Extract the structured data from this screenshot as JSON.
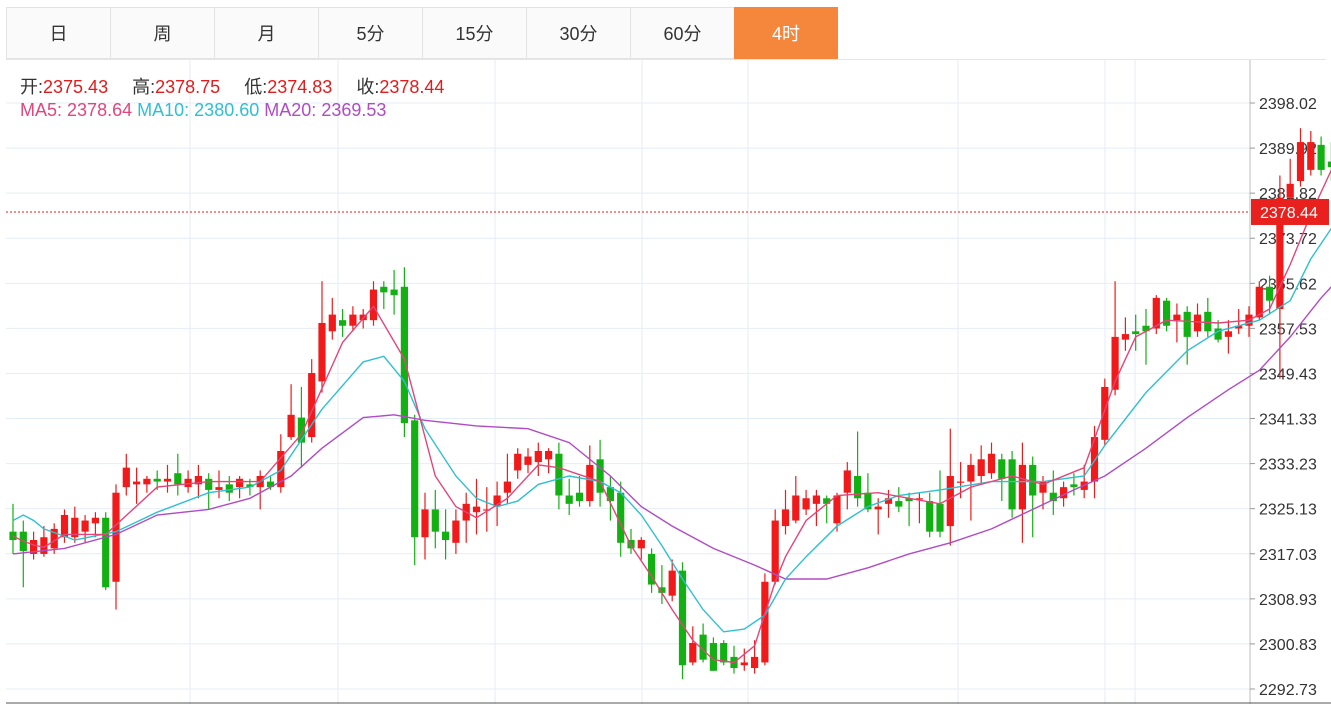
{
  "tabs": [
    {
      "label": "日",
      "active": false
    },
    {
      "label": "周",
      "active": false
    },
    {
      "label": "月",
      "active": false
    },
    {
      "label": "5分",
      "active": false
    },
    {
      "label": "15分",
      "active": false
    },
    {
      "label": "30分",
      "active": false
    },
    {
      "label": "60分",
      "active": false
    },
    {
      "label": "4时",
      "active": true
    }
  ],
  "info": {
    "open_label": "开:",
    "open": "2375.43",
    "high_label": "高:",
    "high": "2378.75",
    "low_label": "低:",
    "low": "2374.83",
    "close_label": "收:",
    "close": "2378.44",
    "ma5_label": "MA5:",
    "ma5": "2378.64",
    "ma10_label": "MA10:",
    "ma10": "2380.60",
    "ma20_label": "MA20:",
    "ma20": "2369.53"
  },
  "colors": {
    "up": "#f01a1a",
    "down": "#13b013",
    "ma5": "#e2457a",
    "ma10": "#2fbfd3",
    "ma20": "#b04bc4",
    "price_line": "#e11c1c",
    "price_tag_bg": "#e8211e",
    "active_tab": "#f5873c"
  },
  "chart_data": {
    "type": "candlestick",
    "y_ticks": [
      "2398.02",
      "2389.92",
      "2381.82",
      "2373.72",
      "2365.62",
      "2357.53",
      "2349.43",
      "2341.33",
      "2333.23",
      "2325.13",
      "2317.03",
      "2308.93",
      "2300.83",
      "2292.73"
    ],
    "ylim": [
      2292.73,
      2398.02
    ],
    "current_price": "2378.44",
    "candles": [
      [
        2321.0,
        2319.5,
        2326.0,
        2317.0
      ],
      [
        2321.0,
        2317.5,
        2323.0,
        2311.0
      ],
      [
        2317.0,
        2319.5,
        2321.0,
        2316.0
      ],
      [
        2317.0,
        2320.0,
        2322.0,
        2316.5
      ],
      [
        2318.0,
        2321.5,
        2322.5,
        2317.0
      ],
      [
        2320.0,
        2324.0,
        2325.0,
        2319.0
      ],
      [
        2320.0,
        2323.5,
        2325.5,
        2319.0
      ],
      [
        2321.0,
        2323.0,
        2324.0,
        2319.0
      ],
      [
        2322.5,
        2323.5,
        2324.5,
        2320.0
      ],
      [
        2323.5,
        2311.0,
        2324.5,
        2310.5
      ],
      [
        2312.0,
        2328.0,
        2329.5,
        2307.0
      ],
      [
        2329.0,
        2332.5,
        2335.0,
        2327.5
      ],
      [
        2329.5,
        2330.0,
        2332.5,
        2326.0
      ],
      [
        2329.5,
        2330.5,
        2331.0,
        2328.0
      ],
      [
        2330.5,
        2330.0,
        2332.0,
        2328.5
      ],
      [
        2330.0,
        2330.5,
        2333.0,
        2328.0
      ],
      [
        2331.5,
        2329.5,
        2335.0,
        2327.5
      ],
      [
        2329.0,
        2330.5,
        2332.0,
        2328.0
      ],
      [
        2329.5,
        2331.0,
        2333.0,
        2327.0
      ],
      [
        2330.5,
        2328.5,
        2331.5,
        2325.0
      ],
      [
        2328.5,
        2329.0,
        2332.0,
        2327.0
      ],
      [
        2329.5,
        2328.0,
        2331.0,
        2326.5
      ],
      [
        2329.0,
        2330.5,
        2331.0,
        2327.0
      ],
      [
        2329.5,
        2329.0,
        2330.5,
        2327.5
      ],
      [
        2329.0,
        2331.0,
        2332.0,
        2325.0
      ],
      [
        2330.0,
        2329.0,
        2331.0,
        2328.5
      ],
      [
        2329.0,
        2335.5,
        2338.5,
        2328.0
      ],
      [
        2338.0,
        2342.0,
        2347.5,
        2337.5
      ],
      [
        2341.5,
        2337.0,
        2347.0,
        2332.5
      ],
      [
        2338.0,
        2349.5,
        2352.0,
        2337.0
      ],
      [
        2348.0,
        2358.5,
        2366.0,
        2346.0
      ],
      [
        2357.0,
        2360.0,
        2363.0,
        2355.5
      ],
      [
        2359.0,
        2358.0,
        2361.0,
        2356.0
      ],
      [
        2358.0,
        2360.0,
        2361.5,
        2357.0
      ],
      [
        2359.0,
        2360.0,
        2361.0,
        2357.5
      ],
      [
        2359.0,
        2364.5,
        2366.0,
        2358.0
      ],
      [
        2365.0,
        2364.0,
        2366.0,
        2361.0
      ],
      [
        2364.5,
        2363.5,
        2368.0,
        2360.0
      ],
      [
        2365.0,
        2340.5,
        2368.5,
        2338.0
      ],
      [
        2341.0,
        2320.0,
        2342.0,
        2315.0
      ],
      [
        2320.0,
        2325.0,
        2328.0,
        2316.0
      ],
      [
        2325.0,
        2321.0,
        2328.5,
        2318.0
      ],
      [
        2321.0,
        2319.5,
        2325.0,
        2316.0
      ],
      [
        2319.0,
        2323.0,
        2325.0,
        2317.0
      ],
      [
        2323.0,
        2326.0,
        2328.0,
        2319.0
      ],
      [
        2324.5,
        2325.5,
        2330.5,
        2320.5
      ],
      [
        2325.0,
        2325.0,
        2329.0,
        2321.0
      ],
      [
        2325.5,
        2327.5,
        2330.0,
        2322.0
      ],
      [
        2328.0,
        2330.0,
        2335.0,
        2326.0
      ],
      [
        2332.0,
        2335.0,
        2336.0,
        2330.5
      ],
      [
        2333.0,
        2334.5,
        2336.0,
        2331.5
      ],
      [
        2333.5,
        2335.5,
        2337.0,
        2331.0
      ],
      [
        2334.0,
        2335.5,
        2336.0,
        2331.5
      ],
      [
        2335.0,
        2327.5,
        2337.0,
        2325.0
      ],
      [
        2327.5,
        2326.0,
        2330.5,
        2324.0
      ],
      [
        2328.0,
        2326.5,
        2331.0,
        2325.5
      ],
      [
        2326.5,
        2333.0,
        2336.5,
        2325.5
      ],
      [
        2334.0,
        2328.0,
        2337.5,
        2325.5
      ],
      [
        2329.0,
        2326.5,
        2331.0,
        2323.0
      ],
      [
        2328.0,
        2319.0,
        2330.0,
        2316.5
      ],
      [
        2319.5,
        2318.0,
        2321.5,
        2317.0
      ],
      [
        2318.0,
        2319.5,
        2320.0,
        2316.0
      ],
      [
        2317.0,
        2311.5,
        2318.0,
        2310.0
      ],
      [
        2311.0,
        2310.0,
        2315.0,
        2308.0
      ],
      [
        2309.5,
        2314.0,
        2316.0,
        2308.5
      ],
      [
        2314.0,
        2297.0,
        2315.5,
        2294.5
      ],
      [
        2297.5,
        2301.0,
        2304.0,
        2297.0
      ],
      [
        2302.5,
        2298.0,
        2304.5,
        2297.5
      ],
      [
        2301.0,
        2296.0,
        2302.0,
        2296.0
      ],
      [
        2301.0,
        2297.5,
        2301.5,
        2297.0
      ],
      [
        2298.5,
        2296.5,
        2300.5,
        2295.5
      ],
      [
        2297.0,
        2297.5,
        2300.0,
        2296.0
      ],
      [
        2296.5,
        2298.5,
        2301.5,
        2295.5
      ],
      [
        2297.5,
        2312.0,
        2313.5,
        2297.0
      ],
      [
        2312.0,
        2323.0,
        2325.0,
        2311.5
      ],
      [
        2322.0,
        2325.0,
        2328.5,
        2320.5
      ],
      [
        2323.0,
        2327.5,
        2331.0,
        2322.5
      ],
      [
        2325.0,
        2327.0,
        2328.5,
        2324.0
      ],
      [
        2326.0,
        2327.5,
        2328.5,
        2322.0
      ],
      [
        2327.0,
        2326.0,
        2327.5,
        2322.5
      ],
      [
        2322.5,
        2327.5,
        2328.0,
        2321.0
      ],
      [
        2328.0,
        2332.0,
        2333.5,
        2325.0
      ],
      [
        2331.0,
        2327.0,
        2339.0,
        2325.5
      ],
      [
        2328.0,
        2325.0,
        2331.5,
        2324.5
      ],
      [
        2325.0,
        2325.5,
        2327.0,
        2320.5
      ],
      [
        2326.0,
        2327.0,
        2328.5,
        2323.5
      ],
      [
        2326.5,
        2325.5,
        2329.0,
        2324.5
      ],
      [
        2327.0,
        2326.5,
        2328.0,
        2322.0
      ],
      [
        2327.0,
        2327.0,
        2328.0,
        2322.5
      ],
      [
        2326.5,
        2321.0,
        2328.0,
        2320.0
      ],
      [
        2326.0,
        2321.0,
        2332.0,
        2320.0
      ],
      [
        2322.0,
        2331.0,
        2339.5,
        2318.5
      ],
      [
        2330.0,
        2330.0,
        2333.5,
        2327.0
      ],
      [
        2330.0,
        2333.0,
        2335.0,
        2323.0
      ],
      [
        2331.0,
        2334.0,
        2336.5,
        2329.5
      ],
      [
        2331.5,
        2335.0,
        2337.0,
        2330.5
      ],
      [
        2334.0,
        2330.5,
        2335.0,
        2326.5
      ],
      [
        2334.0,
        2325.0,
        2335.5,
        2323.5
      ],
      [
        2325.0,
        2333.0,
        2337.0,
        2319.0
      ],
      [
        2333.0,
        2327.5,
        2334.5,
        2320.0
      ],
      [
        2328.0,
        2330.0,
        2331.0,
        2325.0
      ],
      [
        2328.0,
        2326.5,
        2332.0,
        2324.0
      ],
      [
        2327.0,
        2329.0,
        2330.0,
        2325.5
      ],
      [
        2329.5,
        2329.0,
        2331.5,
        2327.5
      ],
      [
        2328.5,
        2330.0,
        2333.0,
        2327.0
      ],
      [
        2330.0,
        2338.0,
        2340.0,
        2327.0
      ],
      [
        2337.5,
        2347.0,
        2348.5,
        2336.5
      ],
      [
        2346.5,
        2356.0,
        2366.0,
        2345.5
      ],
      [
        2355.5,
        2356.5,
        2359.5,
        2353.5
      ],
      [
        2357.0,
        2356.5,
        2360.0,
        2353.5
      ],
      [
        2358.0,
        2357.0,
        2361.0,
        2351.0
      ],
      [
        2357.5,
        2363.0,
        2363.5,
        2356.5
      ],
      [
        2362.5,
        2358.0,
        2363.0,
        2357.0
      ],
      [
        2359.0,
        2360.0,
        2362.0,
        2355.0
      ],
      [
        2360.5,
        2356.0,
        2361.5,
        2351.0
      ],
      [
        2357.0,
        2360.0,
        2362.0,
        2356.0
      ],
      [
        2360.5,
        2357.0,
        2363.0,
        2356.0
      ],
      [
        2357.5,
        2355.5,
        2359.0,
        2355.0
      ],
      [
        2356.0,
        2357.0,
        2359.0,
        2353.0
      ],
      [
        2357.5,
        2358.0,
        2361.0,
        2356.5
      ],
      [
        2358.0,
        2360.0,
        2361.5,
        2356.0
      ],
      [
        2359.5,
        2365.0,
        2366.0,
        2359.0
      ],
      [
        2365.0,
        2362.5,
        2367.0,
        2360.0
      ],
      [
        2361.0,
        2381.0,
        2385.0,
        2348.5
      ],
      [
        2381.0,
        2383.5,
        2388.0,
        2378.0
      ],
      [
        2384.0,
        2391.0,
        2393.5,
        2383.0
      ],
      [
        2386.0,
        2391.0,
        2393.0,
        2385.0
      ],
      [
        2390.5,
        2386.0,
        2392.0,
        2385.0
      ],
      [
        2387.5,
        2386.5,
        2391.0,
        2384.0
      ],
      [
        2386.5,
        2381.5,
        2388.0,
        2380.0
      ],
      [
        2381.5,
        2369.0,
        2384.0,
        2367.0
      ],
      [
        2369.0,
        2374.0,
        2375.0,
        2368.0
      ],
      [
        2375.43,
        2378.44,
        2378.75,
        2374.83
      ]
    ],
    "ma5": [
      [
        0,
        2320.2
      ],
      [
        1,
        2319.3
      ],
      [
        2,
        2318.6
      ],
      [
        3,
        2318.2
      ],
      [
        5,
        2320.5
      ],
      [
        9,
        2320.5
      ],
      [
        14,
        2329.0
      ],
      [
        19,
        2330.0
      ],
      [
        24,
        2330.0
      ],
      [
        28,
        2338.5
      ],
      [
        32,
        2355.0
      ],
      [
        35,
        2361.5
      ],
      [
        38,
        2352.0
      ],
      [
        41,
        2331.0
      ],
      [
        43,
        2325.5
      ],
      [
        45,
        2323.5
      ],
      [
        48,
        2327.0
      ],
      [
        51,
        2333.0
      ],
      [
        53,
        2332.5
      ],
      [
        57,
        2330.0
      ],
      [
        60,
        2318.5
      ],
      [
        62,
        2313.0
      ],
      [
        64,
        2307.0
      ],
      [
        66,
        2301.5
      ],
      [
        68,
        2298.0
      ],
      [
        70,
        2297.5
      ],
      [
        72,
        2300.5
      ],
      [
        74,
        2312.0
      ],
      [
        75,
        2316.5
      ],
      [
        77,
        2323.0
      ],
      [
        80,
        2327.5
      ],
      [
        84,
        2328.0
      ],
      [
        87,
        2327.0
      ],
      [
        90,
        2326.0
      ],
      [
        93,
        2329.0
      ],
      [
        97,
        2331.0
      ],
      [
        100,
        2329.5
      ],
      [
        104,
        2332.5
      ],
      [
        107,
        2348.0
      ],
      [
        109,
        2356.0
      ],
      [
        112,
        2359.0
      ],
      [
        117,
        2358.5
      ],
      [
        120,
        2359.0
      ],
      [
        122,
        2361.0
      ],
      [
        124,
        2369.0
      ],
      [
        126,
        2378.0
      ],
      [
        128,
        2386.0
      ],
      [
        129,
        2387.5
      ],
      [
        130,
        2387.0
      ],
      [
        131,
        2384.5
      ],
      [
        132,
        2380.5
      ],
      [
        133,
        2378.6
      ]
    ],
    "ma10": [
      [
        0,
        2323.0
      ],
      [
        1,
        2324.0
      ],
      [
        2,
        2323.0
      ],
      [
        3,
        2321.5
      ],
      [
        6,
        2319.5
      ],
      [
        10,
        2321.0
      ],
      [
        14,
        2324.5
      ],
      [
        19,
        2328.0
      ],
      [
        23,
        2329.0
      ],
      [
        26,
        2332.0
      ],
      [
        30,
        2343.0
      ],
      [
        34,
        2351.5
      ],
      [
        36,
        2352.5
      ],
      [
        38,
        2348.0
      ],
      [
        40,
        2339.5
      ],
      [
        43,
        2331.0
      ],
      [
        45,
        2327.0
      ],
      [
        47,
        2325.5
      ],
      [
        49,
        2326.5
      ],
      [
        51,
        2329.5
      ],
      [
        54,
        2331.0
      ],
      [
        57,
        2330.0
      ],
      [
        59,
        2328.0
      ],
      [
        61,
        2324.0
      ],
      [
        63,
        2318.5
      ],
      [
        65,
        2312.5
      ],
      [
        67,
        2307.0
      ],
      [
        69,
        2303.0
      ],
      [
        71,
        2303.5
      ],
      [
        73,
        2306.0
      ],
      [
        75,
        2312.5
      ],
      [
        77,
        2316.5
      ],
      [
        80,
        2322.0
      ],
      [
        83,
        2325.5
      ],
      [
        86,
        2327.5
      ],
      [
        90,
        2328.5
      ],
      [
        95,
        2330.0
      ],
      [
        100,
        2330.0
      ],
      [
        104,
        2331.0
      ],
      [
        106,
        2336.5
      ],
      [
        110,
        2346.0
      ],
      [
        114,
        2353.5
      ],
      [
        117,
        2357.0
      ],
      [
        121,
        2359.0
      ],
      [
        124,
        2362.5
      ],
      [
        126,
        2370.0
      ],
      [
        128,
        2375.5
      ],
      [
        130,
        2380.0
      ],
      [
        132,
        2381.0
      ],
      [
        133,
        2380.6
      ]
    ],
    "ma20": [
      [
        0,
        2317.0
      ],
      [
        5,
        2318.0
      ],
      [
        10,
        2320.5
      ],
      [
        14,
        2324.0
      ],
      [
        19,
        2325.0
      ],
      [
        23,
        2327.0
      ],
      [
        27,
        2331.0
      ],
      [
        30,
        2336.0
      ],
      [
        34,
        2341.5
      ],
      [
        37,
        2342.0
      ],
      [
        40,
        2341.0
      ],
      [
        45,
        2340.0
      ],
      [
        50,
        2339.5
      ],
      [
        54,
        2337.0
      ],
      [
        58,
        2331.0
      ],
      [
        61,
        2325.5
      ],
      [
        64,
        2322.0
      ],
      [
        68,
        2318.0
      ],
      [
        72,
        2315.0
      ],
      [
        75,
        2312.5
      ],
      [
        79,
        2312.5
      ],
      [
        83,
        2314.5
      ],
      [
        87,
        2317.0
      ],
      [
        91,
        2319.0
      ],
      [
        95,
        2321.5
      ],
      [
        99,
        2325.0
      ],
      [
        103,
        2328.5
      ],
      [
        106,
        2331.0
      ],
      [
        110,
        2336.0
      ],
      [
        114,
        2341.5
      ],
      [
        118,
        2346.5
      ],
      [
        121,
        2350.0
      ],
      [
        124,
        2356.0
      ],
      [
        127,
        2363.0
      ],
      [
        129,
        2367.0
      ],
      [
        131,
        2368.5
      ],
      [
        133,
        2369.5
      ]
    ]
  }
}
